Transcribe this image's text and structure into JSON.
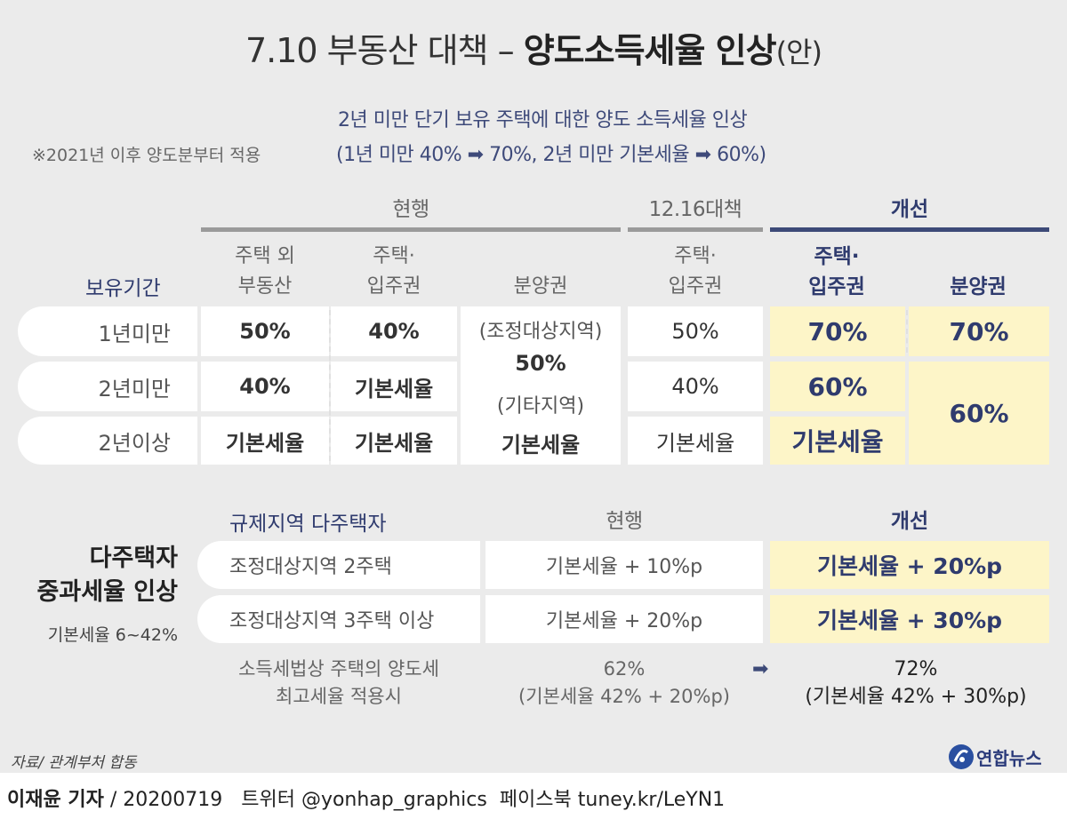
{
  "title": {
    "prefix": "7.10 부동산 대책 – ",
    "bold": "양도소득세율 인상",
    "tail": "(안)"
  },
  "summary": {
    "line1": "2년 미만 단기 보유 주택에 대한 양도 소득세율 인상",
    "line2": "(1년 미만 40% ➡ 70%, 2년 미만 기본세율 ➡ 60%)",
    "note": "※2021년 이후 양도분부터 적용"
  },
  "table1": {
    "group_current": "현행",
    "group_1216": "12.16대책",
    "group_improve": "개선",
    "col_period": "보유기간",
    "col_nonhouse": [
      "주택 외",
      "부동산"
    ],
    "col_house": [
      "주택·",
      "입주권"
    ],
    "col_bunyang": "분양권",
    "col_1216_house": [
      "주택·",
      "입주권"
    ],
    "col_new_house": [
      "주택·",
      "입주권"
    ],
    "col_new_bunyang": "분양권",
    "rows": [
      {
        "label": "1년미만",
        "nonhouse": "50%",
        "house": "40%",
        "r1216": "50%",
        "new_house": "70%"
      },
      {
        "label": "2년미만",
        "nonhouse": "40%",
        "house": "기본세율",
        "r1216": "40%",
        "new_house": "60%"
      },
      {
        "label": "2년이상",
        "nonhouse": "기본세율",
        "house": "기본세율",
        "r1216": "기본세율",
        "new_house": "기본세율"
      }
    ],
    "bunyang_cell": {
      "line1": "(조정대상지역)",
      "line2": "50%",
      "line3": "(기타지역)",
      "line4": "기본세율"
    },
    "new_bunyang": {
      "top": "70%",
      "bottom": "60%"
    }
  },
  "table2": {
    "left_title1": "다주택자",
    "left_title2": "중과세율 인상",
    "left_sub": "기본세율 6~42%",
    "head_area": "규제지역 다주택자",
    "head_current": "현행",
    "head_improve": "개선",
    "rows": [
      {
        "label": "조정대상지역 2주택",
        "current": "기본세율 + 10%p",
        "improve": "기본세율 + 20%p"
      },
      {
        "label": "조정대상지역 3주택 이상",
        "current": "기본세율 + 20%p",
        "improve": "기본세율 + 30%p"
      }
    ],
    "max_label": [
      "소득세법상 주택의 양도세",
      "최고세율 적용시"
    ],
    "max_current": [
      "62%",
      "(기본세율 42% + 20%p)"
    ],
    "arrow": "➡",
    "max_improve": [
      "72%",
      "(기본세율 42% + 30%p)"
    ]
  },
  "source": "자료/ 관계부처 합동",
  "logo_text": "연합뉴스",
  "footer": {
    "reporter": "이재윤 기자",
    "rest": " / 20200719   트위터 @yonhap_graphics  페이스북 tuney.kr/LeYN1"
  }
}
